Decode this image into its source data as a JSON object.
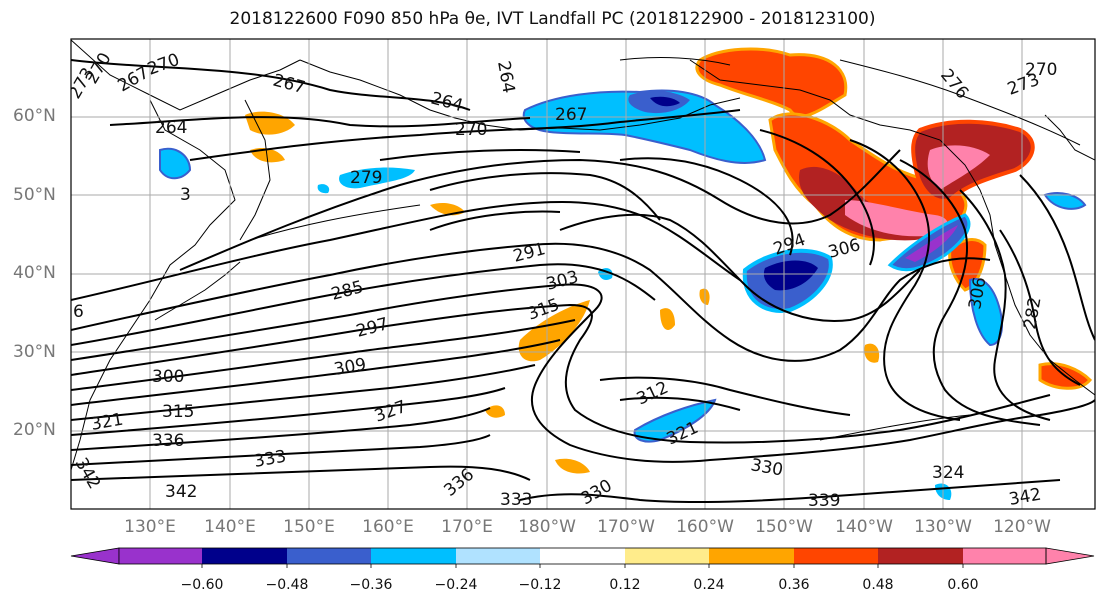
{
  "title": "2018122600 F090 850 hPa θe, IVT Landfall PC (2018122900 - 2018123100)",
  "lat_labels": [
    "60°N",
    "50°N",
    "40°N",
    "30°N",
    "20°N"
  ],
  "lon_labels": [
    "130°E",
    "140°E",
    "150°E",
    "160°E",
    "170°E",
    "180°W",
    "170°W",
    "160°W",
    "150°W",
    "140°W",
    "130°W",
    "120°W"
  ],
  "colorbar": {
    "colors": [
      "#9932cc",
      "#00008b",
      "#3a5fcd",
      "#00bfff",
      "#b0e2ff",
      "#ffffff",
      "#ffec8b",
      "#ffa500",
      "#ff4500",
      "#b22222",
      "#ff82ab"
    ],
    "ticks": [
      "−0.60",
      "−0.48",
      "−0.36",
      "−0.24",
      "−0.12",
      "0.12",
      "0.24",
      "0.36",
      "0.48",
      "0.60"
    ]
  },
  "contour_labels": [
    "273",
    "270",
    "267",
    "270",
    "264",
    "267",
    "264",
    "270",
    "267",
    "279",
    "291",
    "303",
    "285",
    "297",
    "309",
    "300",
    "315",
    "321",
    "336",
    "342",
    "342",
    "333",
    "327",
    "336",
    "333",
    "330",
    "312",
    "321",
    "330",
    "339",
    "342",
    "324",
    "294",
    "306",
    "306",
    "282",
    "276",
    "273",
    "270",
    "264",
    "315",
    "6",
    "3"
  ]
}
